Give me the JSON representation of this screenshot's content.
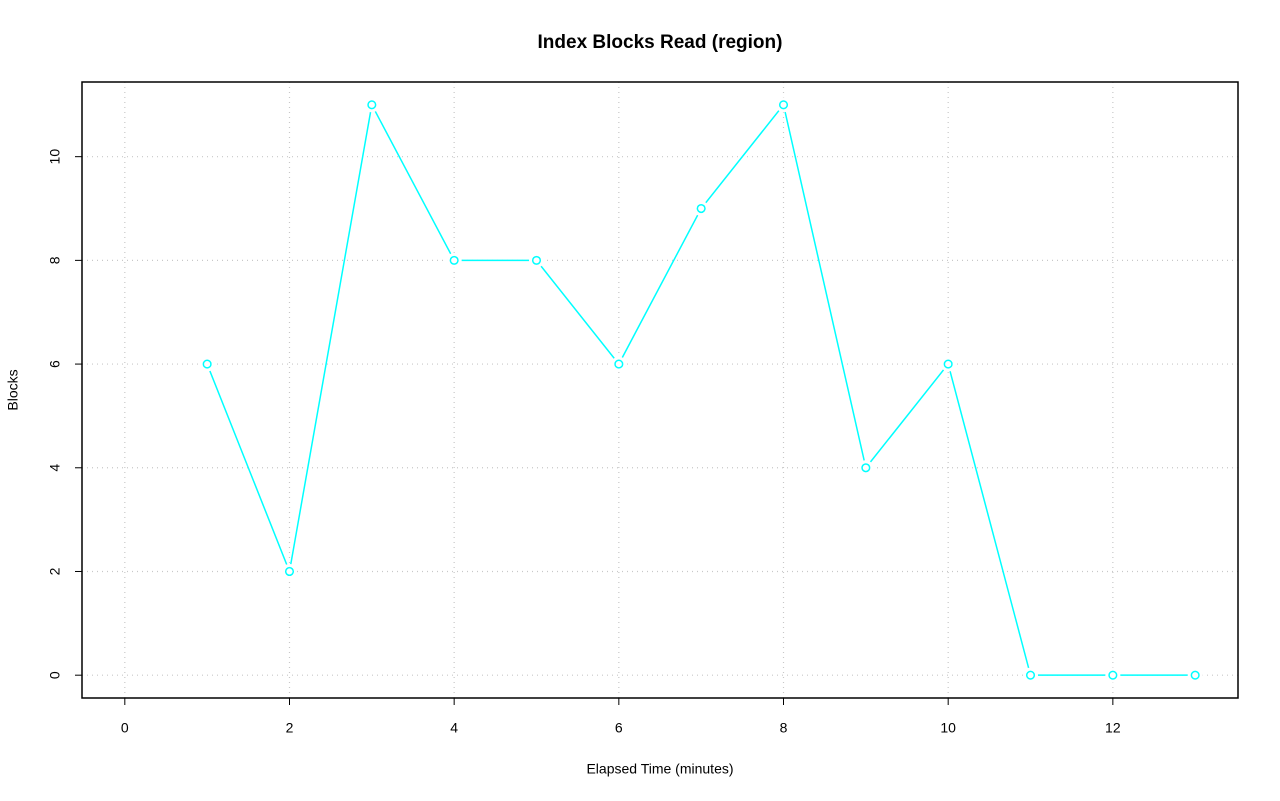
{
  "chart_data": {
    "type": "line",
    "title": "Index Blocks Read (region)",
    "x_label": "Elapsed Time (minutes)",
    "y_label": "Blocks",
    "x": [
      1,
      2,
      3,
      4,
      5,
      6,
      7,
      8,
      9,
      10,
      11,
      12,
      13
    ],
    "series": [
      {
        "color": "#00ffff",
        "values": [
          6,
          2,
          11,
          8,
          8,
          6,
          9,
          11,
          4,
          6,
          0,
          0,
          0
        ]
      }
    ],
    "xlim": [
      -0.52,
      13.52
    ],
    "xticks": [
      0,
      2,
      4,
      6,
      8,
      10,
      12
    ],
    "ylim": [
      -0.44,
      11.44
    ],
    "yticks": [
      0,
      2,
      4,
      6,
      8,
      10
    ],
    "grid": true,
    "markers": true
  }
}
